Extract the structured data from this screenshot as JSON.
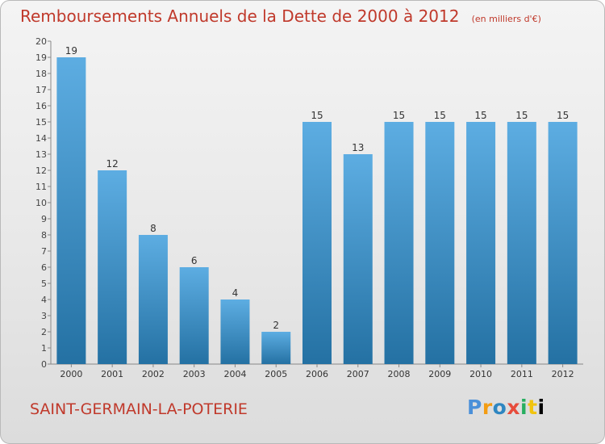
{
  "header": {
    "title": "Remboursements Annuels de la Dette de 2000 à 2012",
    "unit": "(en milliers d'€)"
  },
  "footer": {
    "commune": "SAINT-GERMAIN-LA-POTERIE",
    "logo_letters": [
      "P",
      "r",
      "o",
      "x",
      "i",
      "t",
      "i"
    ]
  },
  "colors": {
    "title": "#c0392b",
    "bar_top": "#5dade2",
    "bar_bottom": "#2471a3"
  },
  "chart_data": {
    "type": "bar",
    "categories": [
      "2000",
      "2001",
      "2002",
      "2003",
      "2004",
      "2005",
      "2006",
      "2007",
      "2008",
      "2009",
      "2010",
      "2011",
      "2012"
    ],
    "values": [
      19,
      12,
      8,
      6,
      4,
      2,
      15,
      13,
      15,
      15,
      15,
      15,
      15
    ],
    "yticks": [
      0,
      1,
      2,
      3,
      4,
      5,
      6,
      7,
      8,
      9,
      10,
      11,
      12,
      13,
      14,
      15,
      16,
      17,
      18,
      19,
      20
    ],
    "ylim": [
      0,
      20
    ],
    "grid": false,
    "legend": "none"
  }
}
